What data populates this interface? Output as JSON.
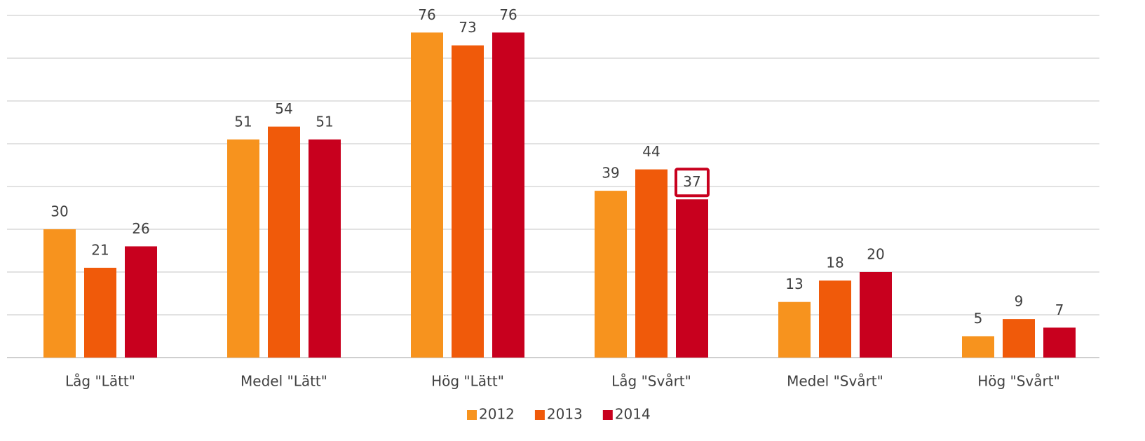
{
  "chart_data": {
    "type": "bar",
    "categories": [
      "Låg \"Lätt\"",
      "Medel \"Lätt\"",
      "Hög \"Lätt\"",
      "Låg \"Svårt\"",
      "Medel \"Svårt\"",
      "Hög \"Svårt\""
    ],
    "series": [
      {
        "name": "2012",
        "color": "#f7931e",
        "values": [
          30,
          51,
          76,
          39,
          13,
          5
        ]
      },
      {
        "name": "2013",
        "color": "#f05a0a",
        "values": [
          21,
          54,
          73,
          44,
          18,
          9
        ]
      },
      {
        "name": "2014",
        "color": "#c8001e",
        "values": [
          26,
          51,
          76,
          37,
          20,
          7
        ]
      }
    ],
    "ylim": [
      0,
      80
    ],
    "yticks": [
      0,
      10,
      20,
      30,
      40,
      50,
      60,
      70,
      80
    ],
    "grid": true,
    "legend": "bottom"
  }
}
